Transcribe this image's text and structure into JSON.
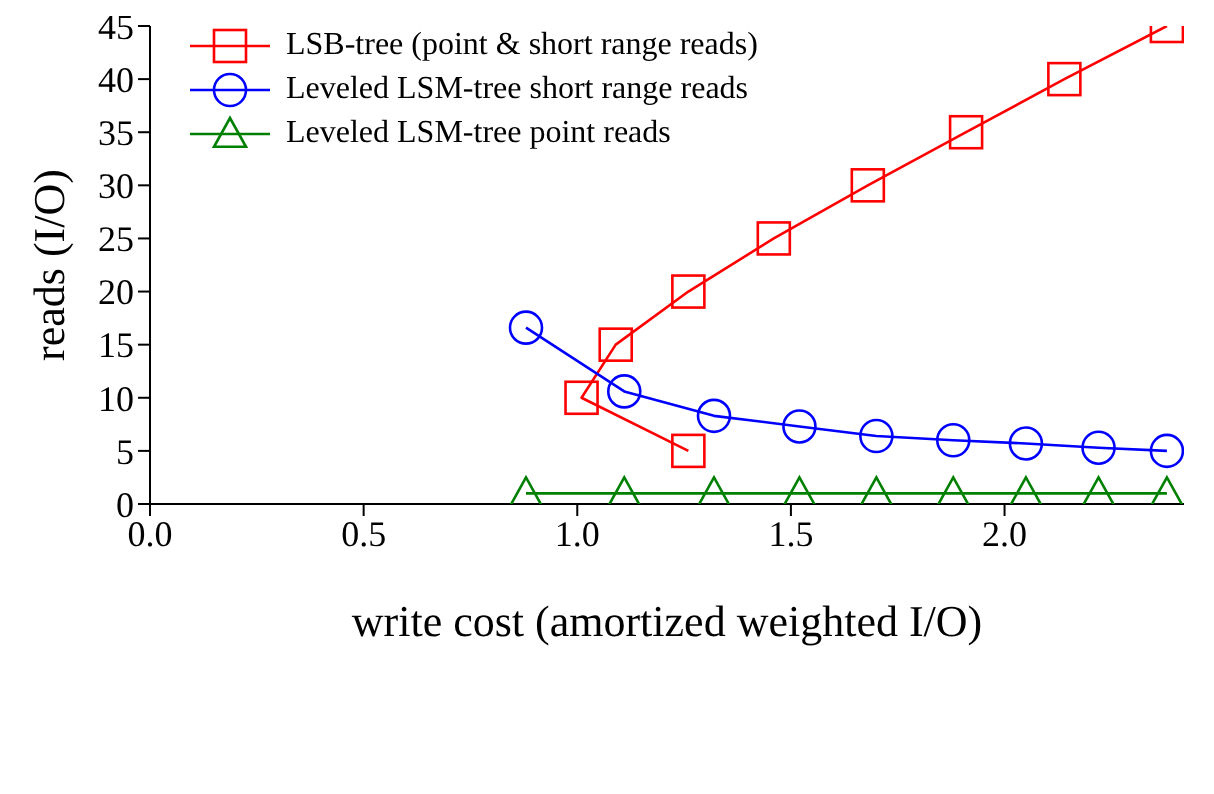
{
  "chart_data": {
    "type": "line",
    "xlabel": "write cost (amortized weighted I/O)",
    "ylabel": "reads (I/O)",
    "xlim": [
      0,
      2.42
    ],
    "ylim": [
      0,
      45
    ],
    "xticks": [
      {
        "value": 0,
        "label": "0.0"
      },
      {
        "value": 0.5,
        "label": "0.5"
      },
      {
        "value": 1,
        "label": "1.0"
      },
      {
        "value": 1.5,
        "label": "1.5"
      },
      {
        "value": 2,
        "label": "2.0"
      }
    ],
    "yticks": [
      0,
      5,
      10,
      15,
      20,
      25,
      30,
      35,
      40,
      45
    ],
    "grid": false,
    "legend": "top left",
    "line_style": "solid",
    "series": [
      {
        "name": "LSB-tree (point & short range reads)",
        "color": "#ff0000",
        "marker": "square",
        "x": [
          2.38,
          2.14,
          1.91,
          1.68,
          1.46,
          1.26,
          1.09,
          1.01,
          1.26
        ],
        "values": [
          45,
          40,
          35,
          30,
          25,
          20,
          15,
          10,
          5
        ]
      },
      {
        "name": "Leveled LSM-tree short range reads",
        "color": "#0000ff",
        "marker": "circle",
        "x": [
          0.88,
          1.11,
          1.32,
          1.52,
          1.7,
          1.88,
          2.05,
          2.22,
          2.38
        ],
        "values": [
          16.6,
          10.6,
          8.3,
          7.3,
          6.4,
          6.0,
          5.7,
          5.3,
          5.0
        ]
      },
      {
        "name": "Leveled LSM-tree point reads",
        "color": "#008000",
        "marker": "triangle",
        "x": [
          0.88,
          1.11,
          1.32,
          1.52,
          1.7,
          1.88,
          2.05,
          2.22,
          2.38
        ],
        "values": [
          1,
          1,
          1,
          1,
          1,
          1,
          1,
          1,
          1
        ]
      }
    ]
  }
}
